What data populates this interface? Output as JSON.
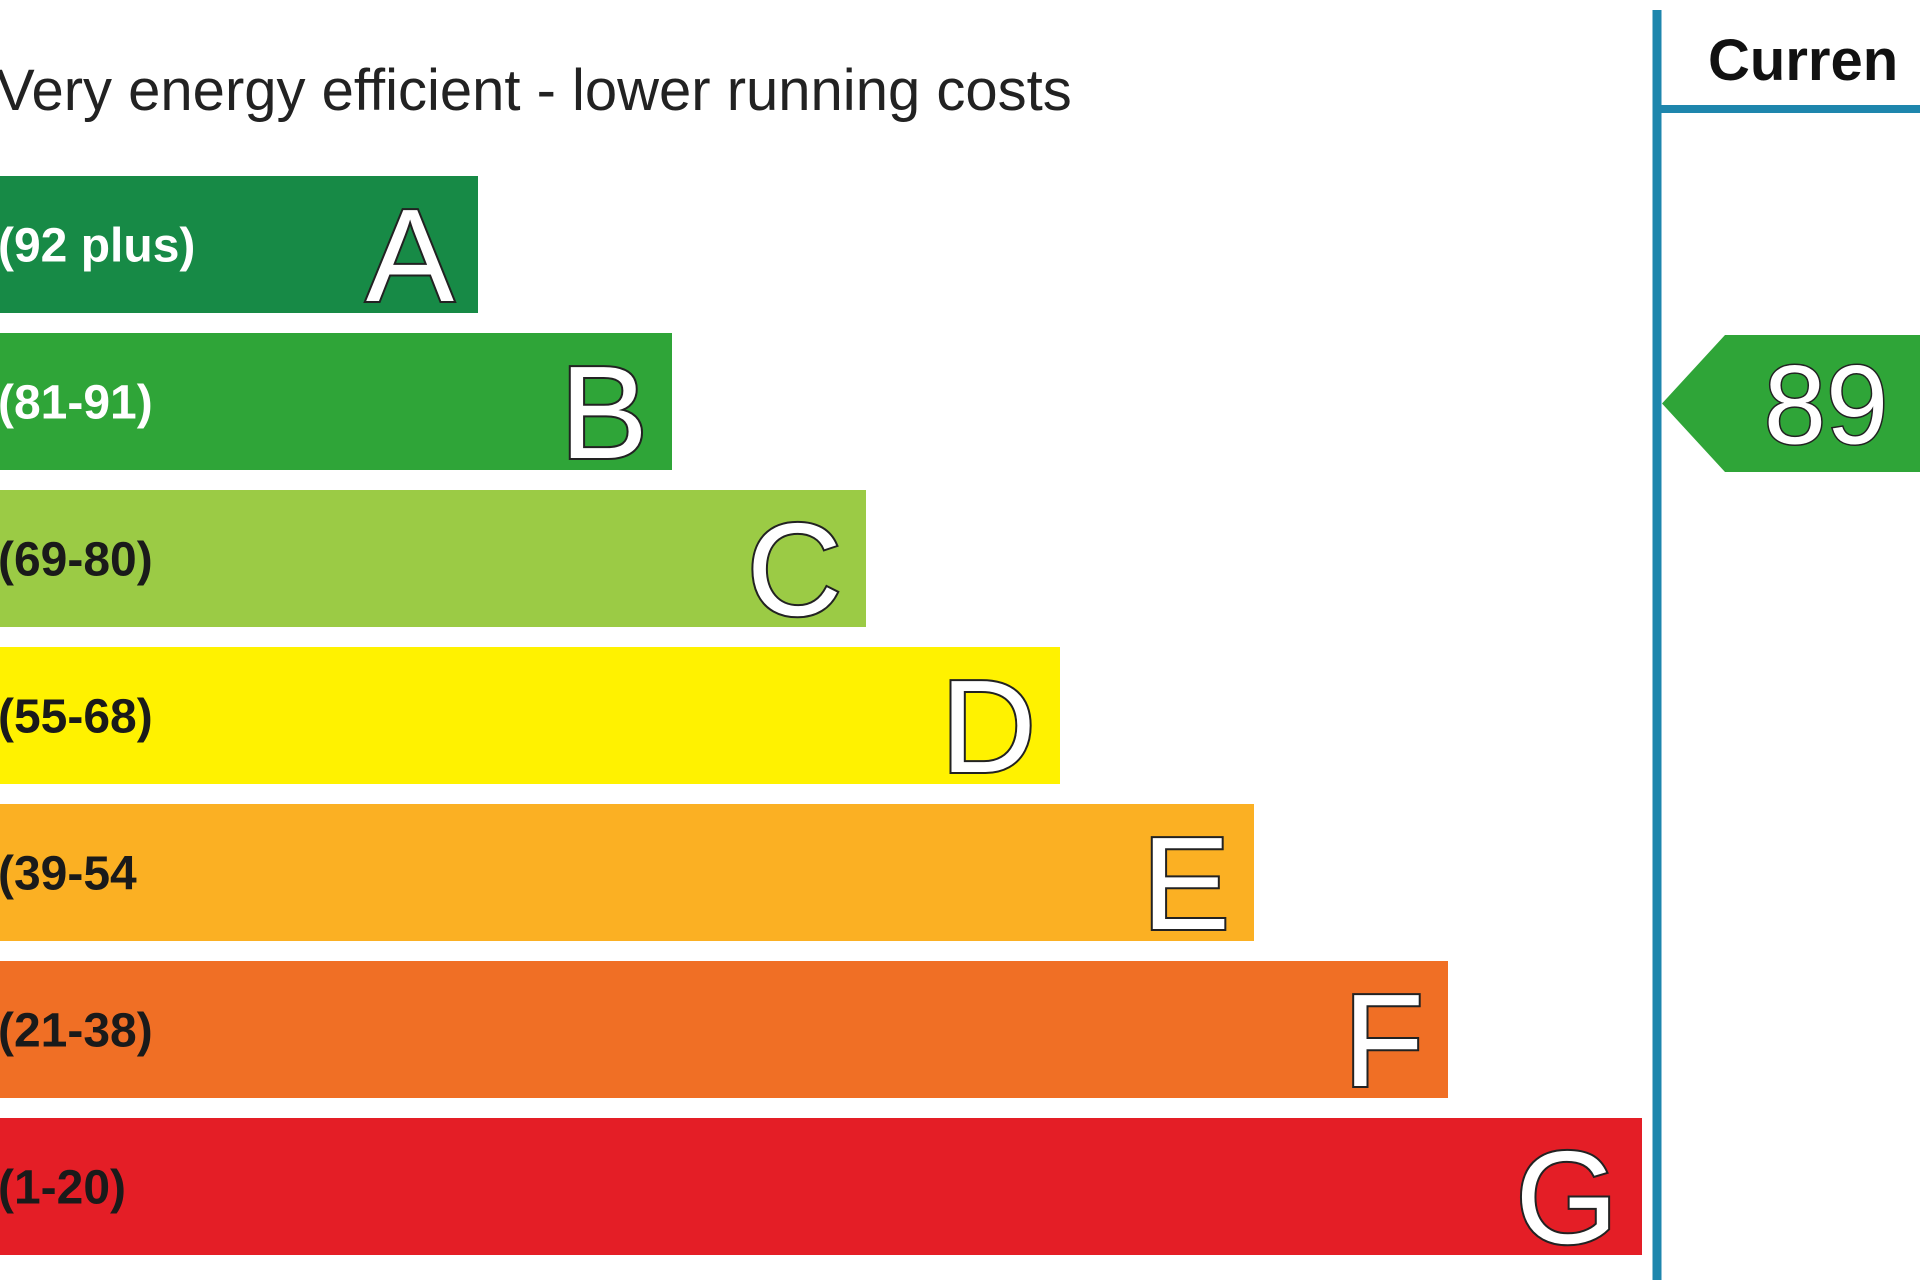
{
  "chart_data": {
    "type": "bar",
    "top_label": "Very energy efficient - lower running costs",
    "bands": [
      {
        "letter": "A",
        "range": "(92 plus)",
        "color": "#178a46",
        "text_color": "#ffffff"
      },
      {
        "letter": "B",
        "range": "(81-91)",
        "color": "#2fa538",
        "text_color": "#ffffff"
      },
      {
        "letter": "C",
        "range": "(69-80)",
        "color": "#9bcb45",
        "text_color": "#1a1a1a"
      },
      {
        "letter": "D",
        "range": "(55-68)",
        "color": "#fff200",
        "text_color": "#1a1a1a"
      },
      {
        "letter": "E",
        "range": "(39-54",
        "color": "#fbb023",
        "text_color": "#1a1a1a"
      },
      {
        "letter": "F",
        "range": "(21-38)",
        "color": "#f06f25",
        "text_color": "#1a1a1a"
      },
      {
        "letter": "G",
        "range": "(1-20)",
        "color": "#e41e26",
        "text_color": "#1a1a1a"
      }
    ],
    "current": {
      "header": "Curren",
      "value": 89,
      "band": "B",
      "color": "#2fa538"
    },
    "column_line_color": "#1e86ad"
  }
}
